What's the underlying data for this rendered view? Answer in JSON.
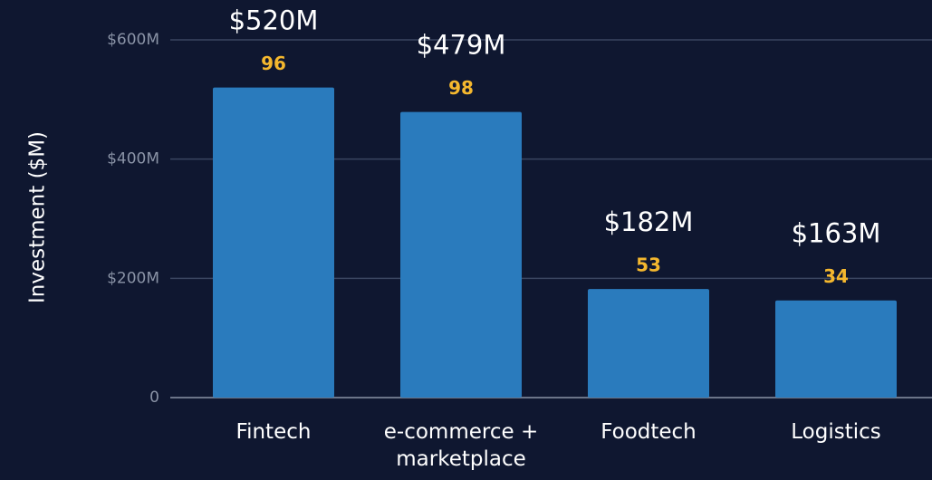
{
  "chart_data": {
    "type": "bar",
    "y_label": "Investment ($M)",
    "categories": [
      "Fintech",
      "e-commerce + marketplace",
      "Foodtech",
      "Logistics"
    ],
    "values": [
      520,
      479,
      182,
      163
    ],
    "value_labels": [
      "$520M",
      "$479M",
      "$182M",
      "$163M"
    ],
    "counts": [
      96,
      98,
      53,
      34
    ],
    "color": "#2a7bbd",
    "count_color": "#f5b82e",
    "ylim": [
      0,
      600
    ],
    "yticks": [
      0,
      {
        "value": 200,
        "label": "$200M"
      },
      {
        "value": 400,
        "label": "$400M"
      },
      {
        "value": 600,
        "label": "$600M"
      }
    ],
    "grid": true
  }
}
